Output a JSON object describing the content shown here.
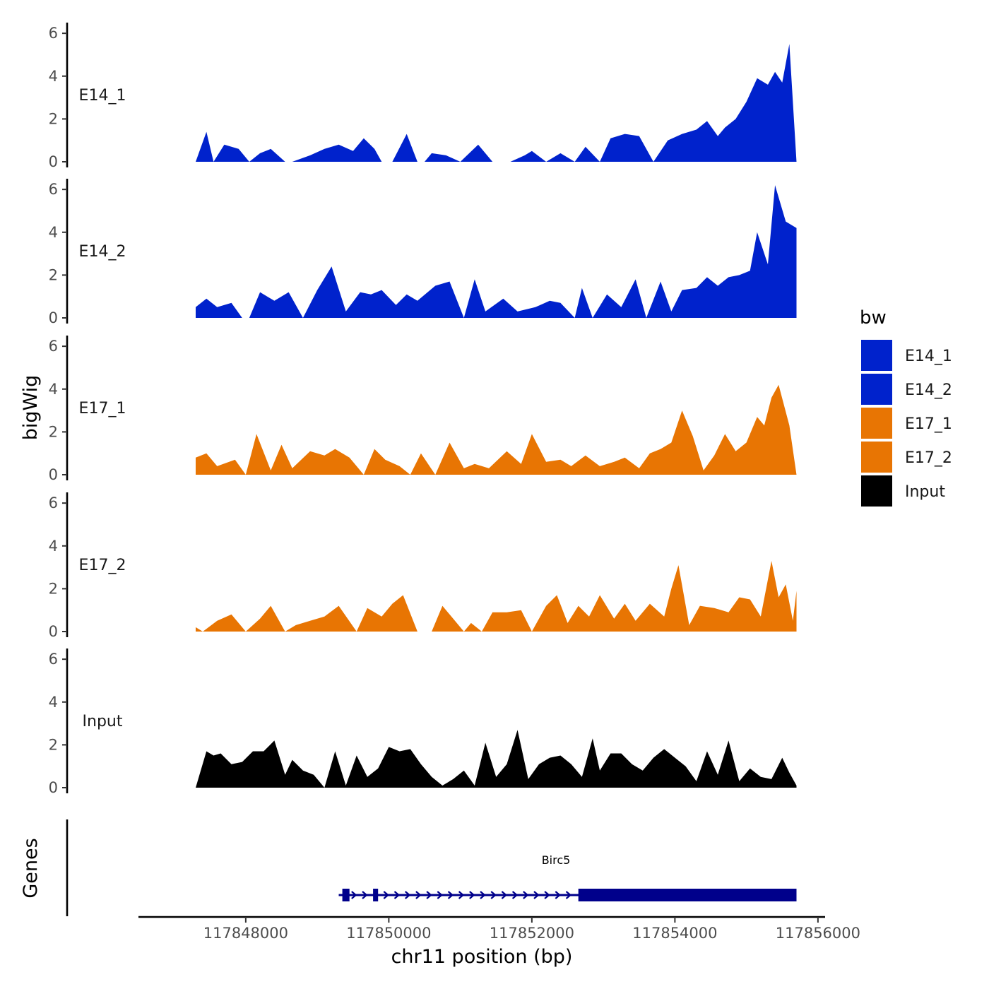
{
  "chart_data": {
    "type": "area",
    "y_axis_title": "bigWig",
    "x_axis_title": "chr11 position (bp)",
    "x_range": [
      117846500,
      117856100
    ],
    "x_ticks": [
      117848000,
      117850000,
      117852000,
      117854000,
      117856000
    ],
    "x_tick_labels": [
      "117848000",
      "117850000",
      "117852000",
      "117854000",
      "117856000"
    ],
    "y_range": [
      0,
      6.5
    ],
    "y_ticks": [
      0,
      2,
      4,
      6
    ],
    "y_tick_labels": [
      "0",
      "2",
      "4",
      "6"
    ],
    "tracks": [
      {
        "name": "E14_1",
        "color": "#0022CC",
        "x": [
          117847300,
          117847450,
          117847550,
          117847700,
          117847900,
          117848050,
          117848200,
          117848350,
          117848550,
          117848650,
          117848900,
          117849100,
          117849300,
          117849500,
          117849650,
          117849800,
          117849900,
          117850050,
          117850250,
          117850400,
          117850500,
          117850600,
          117850800,
          117851000,
          117851250,
          117851450,
          117851700,
          117851900,
          117852000,
          117852200,
          117852400,
          117852600,
          117852750,
          117852950,
          117853100,
          117853300,
          117853500,
          117853700,
          117853900,
          117854100,
          117854300,
          117854450,
          117854600,
          117854700,
          117854850,
          117855000,
          117855150,
          117855300,
          117855400,
          117855500,
          117855600,
          117855700
        ],
        "values": [
          0,
          1.4,
          0,
          0.8,
          0.6,
          0,
          0.4,
          0.6,
          0,
          0,
          0.3,
          0.6,
          0.8,
          0.5,
          1.1,
          0.6,
          0,
          0,
          1.3,
          0,
          0,
          0.4,
          0.3,
          0,
          0.8,
          0,
          0,
          0.3,
          0.5,
          0,
          0.4,
          0,
          0.7,
          0,
          1.1,
          1.3,
          1.2,
          0,
          1.0,
          1.3,
          1.5,
          1.9,
          1.2,
          1.6,
          2.0,
          2.8,
          3.9,
          3.6,
          4.2,
          3.7,
          5.5,
          0
        ]
      },
      {
        "name": "E14_2",
        "color": "#0022CC",
        "x": [
          117847300,
          117847450,
          117847600,
          117847800,
          117847950,
          117848050,
          117848200,
          117848400,
          117848600,
          117848800,
          117849000,
          117849200,
          117849400,
          117849600,
          117849750,
          117849900,
          117850100,
          117850250,
          117850400,
          117850650,
          117850850,
          117851050,
          117851200,
          117851350,
          117851600,
          117851800,
          117852050,
          117852250,
          117852400,
          117852600,
          117852700,
          117852850,
          117853050,
          117853250,
          117853450,
          117853600,
          117853800,
          117853950,
          117854100,
          117854300,
          117854450,
          117854600,
          117854750,
          117854900,
          117855050,
          117855150,
          117855300,
          117855400,
          117855550,
          117855700
        ],
        "values": [
          0.5,
          0.9,
          0.5,
          0.7,
          0.0,
          0.0,
          1.2,
          0.8,
          1.2,
          0.0,
          1.3,
          2.4,
          0.3,
          1.2,
          1.1,
          1.3,
          0.6,
          1.1,
          0.8,
          1.5,
          1.7,
          0.0,
          1.8,
          0.3,
          0.9,
          0.3,
          0.5,
          0.8,
          0.7,
          0.0,
          1.4,
          0.0,
          1.1,
          0.5,
          1.8,
          0.0,
          1.7,
          0.3,
          1.3,
          1.4,
          1.9,
          1.5,
          1.9,
          2.0,
          2.2,
          4.0,
          2.5,
          6.2,
          4.5,
          4.2
        ]
      },
      {
        "name": "E17_1",
        "color": "#E87503",
        "x": [
          117847300,
          117847450,
          117847600,
          117847850,
          117848000,
          117848150,
          117848350,
          117848500,
          117848650,
          117848900,
          117849100,
          117849250,
          117849450,
          117849650,
          117849800,
          117849950,
          117850150,
          117850300,
          117850450,
          117850650,
          117850850,
          117851050,
          117851200,
          117851400,
          117851650,
          117851850,
          117852000,
          117852200,
          117852400,
          117852550,
          117852750,
          117852950,
          117853150,
          117853300,
          117853500,
          117853650,
          117853800,
          117853950,
          117854100,
          117854250,
          117854400,
          117854550,
          117854700,
          117854850,
          117855000,
          117855150,
          117855250,
          117855350,
          117855450,
          117855600,
          117855700
        ],
        "values": [
          0.8,
          1.0,
          0.4,
          0.7,
          0.0,
          1.9,
          0.2,
          1.4,
          0.3,
          1.1,
          0.9,
          1.2,
          0.8,
          0.0,
          1.2,
          0.7,
          0.4,
          0.0,
          1.0,
          0.0,
          1.5,
          0.3,
          0.5,
          0.3,
          1.1,
          0.5,
          1.9,
          0.6,
          0.7,
          0.4,
          0.9,
          0.4,
          0.6,
          0.8,
          0.3,
          1.0,
          1.2,
          1.5,
          3.0,
          1.8,
          0.2,
          0.9,
          1.9,
          1.1,
          1.5,
          2.7,
          2.3,
          3.6,
          4.2,
          2.3,
          0.0
        ]
      },
      {
        "name": "E17_2",
        "color": "#E87503",
        "x": [
          117847300,
          117847400,
          117847600,
          117847800,
          117848000,
          117848200,
          117848350,
          117848550,
          117848700,
          117848900,
          117849100,
          117849300,
          117849550,
          117849700,
          117849900,
          117850050,
          117850200,
          117850400,
          117850600,
          117850750,
          117850900,
          117851050,
          117851150,
          117851300,
          117851450,
          117851650,
          117851850,
          117852000,
          117852200,
          117852350,
          117852500,
          117852650,
          117852800,
          117852950,
          117853150,
          117853300,
          117853450,
          117853650,
          117853850,
          117853950,
          117854050,
          117854200,
          117854350,
          117854550,
          117854750,
          117854900,
          117855050,
          117855200,
          117855350,
          117855450,
          117855550,
          117855650,
          117855700
        ],
        "values": [
          0.2,
          0.0,
          0.5,
          0.8,
          0.0,
          0.6,
          1.2,
          0.0,
          0.3,
          0.5,
          0.7,
          1.2,
          0.0,
          1.1,
          0.7,
          1.3,
          1.7,
          0.0,
          0.0,
          1.2,
          0.6,
          0.0,
          0.4,
          0.0,
          0.9,
          0.9,
          1.0,
          0.0,
          1.2,
          1.7,
          0.4,
          1.2,
          0.7,
          1.7,
          0.6,
          1.3,
          0.5,
          1.3,
          0.7,
          2.0,
          3.1,
          0.3,
          1.2,
          1.1,
          0.9,
          1.6,
          1.5,
          0.7,
          3.3,
          1.6,
          2.2,
          0.5,
          1.9
        ]
      },
      {
        "name": "Input",
        "color": "#000000",
        "x": [
          117847300,
          117847450,
          117847550,
          117847650,
          117847800,
          117847950,
          117848100,
          117848250,
          117848400,
          117848550,
          117848650,
          117848800,
          117848950,
          117849100,
          117849250,
          117849400,
          117849550,
          117849700,
          117849850,
          117850000,
          117850150,
          117850300,
          117850450,
          117850600,
          117850750,
          117850900,
          117851050,
          117851200,
          117851350,
          117851500,
          117851650,
          117851800,
          117851950,
          117852100,
          117852250,
          117852400,
          117852550,
          117852700,
          117852850,
          117852950,
          117853100,
          117853250,
          117853400,
          117853550,
          117853700,
          117853850,
          117854000,
          117854150,
          117854300,
          117854450,
          117854600,
          117854750,
          117854900,
          117855050,
          117855200,
          117855350,
          117855500,
          117855600,
          117855700
        ],
        "values": [
          0.0,
          1.7,
          1.5,
          1.6,
          1.1,
          1.2,
          1.7,
          1.7,
          2.2,
          0.6,
          1.3,
          0.8,
          0.6,
          0.0,
          1.7,
          0.1,
          1.5,
          0.5,
          0.9,
          1.9,
          1.7,
          1.8,
          1.1,
          0.5,
          0.1,
          0.4,
          0.8,
          0.1,
          2.1,
          0.5,
          1.1,
          2.7,
          0.4,
          1.1,
          1.4,
          1.5,
          1.1,
          0.5,
          2.3,
          0.8,
          1.6,
          1.6,
          1.1,
          0.8,
          1.4,
          1.8,
          1.4,
          1.0,
          0.3,
          1.7,
          0.6,
          2.2,
          0.3,
          0.9,
          0.5,
          0.4,
          1.4,
          0.7,
          0.1
        ]
      }
    ],
    "legend": {
      "title": "bw",
      "entries": [
        {
          "label": "E14_1",
          "color": "#0022CC"
        },
        {
          "label": "E14_2",
          "color": "#0022CC"
        },
        {
          "label": "E17_1",
          "color": "#E87503"
        },
        {
          "label": "E17_2",
          "color": "#E87503"
        },
        {
          "label": "Input",
          "color": "#000000"
        }
      ]
    },
    "genes": {
      "title": "Genes",
      "gene_name": "Birc5",
      "color": "#00008B",
      "start": 117849300,
      "end": 117855700,
      "strand": "+",
      "exons": [
        [
          117849350,
          117849450
        ],
        [
          117849780,
          117849850
        ],
        [
          117852650,
          117855700
        ]
      ]
    }
  }
}
